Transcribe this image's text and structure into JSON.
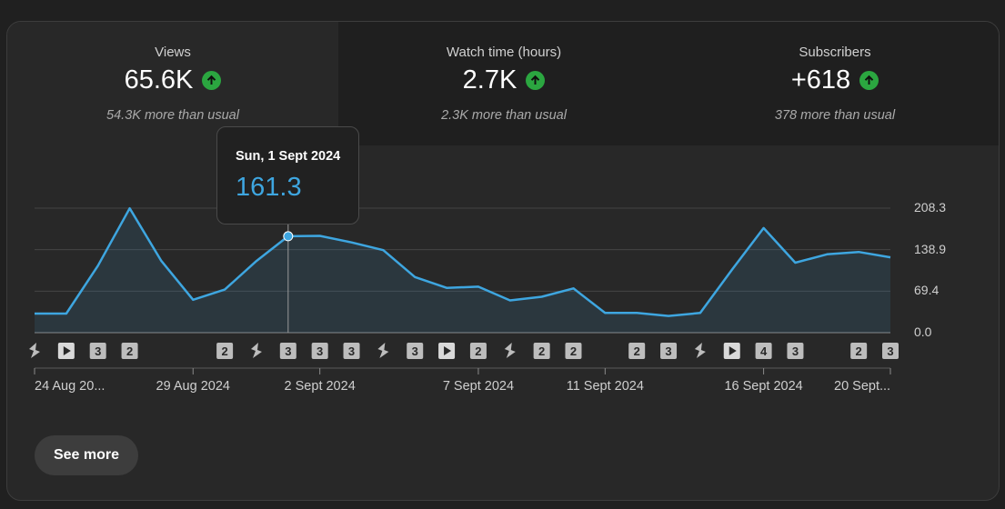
{
  "metrics": [
    {
      "label": "Views",
      "value": "65.6K",
      "sub": "54.3K more than usual"
    },
    {
      "label": "Watch time (hours)",
      "value": "2.7K",
      "sub": "2.3K more than usual"
    },
    {
      "label": "Subscribers",
      "value": "+618",
      "sub": "378 more than usual"
    }
  ],
  "tooltip": {
    "date": "Sun, 1 Sept 2024",
    "value": "161.3"
  },
  "see_more_label": "See more",
  "chart_data": {
    "type": "area",
    "y_ticks": [
      "0.0",
      "69.4",
      "138.9",
      "208.3"
    ],
    "ylim": [
      0,
      208.3
    ],
    "x_tick_labels": [
      "24 Aug 20...",
      "29 Aug 2024",
      "2 Sept 2024",
      "7 Sept 2024",
      "11 Sept 2024",
      "16 Sept 2024",
      "20 Sept..."
    ],
    "x_tick_index": [
      0,
      5,
      9,
      14,
      18,
      23,
      27
    ],
    "values": [
      32,
      32,
      112,
      208,
      120,
      55,
      72,
      120,
      161.3,
      162,
      151,
      138,
      93,
      75,
      77,
      54,
      60,
      74,
      33,
      33,
      28,
      33,
      105,
      175,
      117,
      131,
      135,
      126
    ],
    "highlight_index": 8,
    "color": "#3ea6e0",
    "markers": [
      "shorts",
      "play",
      "3",
      "2",
      "",
      "",
      "2",
      "shorts",
      "3",
      "3",
      "3",
      "shorts",
      "3",
      "play",
      "2",
      "shorts",
      "2",
      "2",
      "",
      "2",
      "3",
      "shorts",
      "play",
      "4",
      "3",
      "",
      "2",
      "3"
    ]
  }
}
